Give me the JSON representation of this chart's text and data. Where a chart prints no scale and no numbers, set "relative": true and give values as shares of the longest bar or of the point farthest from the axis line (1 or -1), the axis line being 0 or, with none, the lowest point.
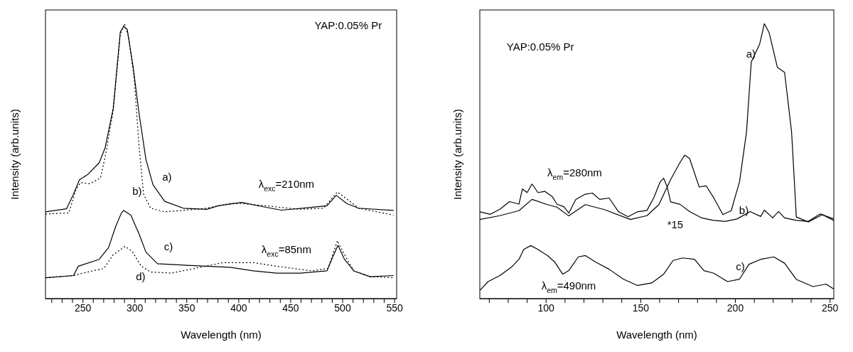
{
  "chart_data": [
    {
      "type": "line",
      "relative": true,
      "xlabel": "Wavelength (nm)",
      "ylabel": "Intensity (arb.units)",
      "xlim": [
        214,
        552
      ],
      "xticks": [
        {
          "value": 220,
          "label": null
        },
        {
          "value": 230,
          "label": null
        },
        {
          "value": 240,
          "label": null
        },
        250,
        {
          "value": 260,
          "label": null
        },
        {
          "value": 270,
          "label": null
        },
        {
          "value": 280,
          "label": null
        },
        {
          "value": 290,
          "label": null
        },
        300,
        {
          "value": 310,
          "label": null
        },
        {
          "value": 320,
          "label": null
        },
        {
          "value": 330,
          "label": null
        },
        {
          "value": 340,
          "label": null
        },
        350,
        {
          "value": 360,
          "label": null
        },
        {
          "value": 370,
          "label": null
        },
        {
          "value": 380,
          "label": null
        },
        {
          "value": 390,
          "label": null
        },
        400,
        {
          "value": 410,
          "label": null
        },
        {
          "value": 420,
          "label": null
        },
        {
          "value": 430,
          "label": null
        },
        {
          "value": 440,
          "label": null
        },
        450,
        {
          "value": 460,
          "label": null
        },
        {
          "value": 470,
          "label": null
        },
        {
          "value": 480,
          "label": null
        },
        {
          "value": 490,
          "label": null
        },
        500,
        {
          "value": 510,
          "label": null
        },
        {
          "value": 520,
          "label": null
        },
        {
          "value": 530,
          "label": null
        },
        {
          "value": 540,
          "label": null
        },
        550
      ],
      "series": [
        {
          "color": "#000000",
          "line_style": "solid",
          "x": [
            214.0,
            234.3,
            241.0,
            246.6,
            254.5,
            265.7,
            271.4,
            279.2,
            286.0,
            289.3,
            292.7,
            298.3,
            304.0,
            310.7,
            317.5,
            328.7,
            346.7,
            369.1,
            380.4,
            402.9,
            425.3,
            441.1,
            461.1,
            484.9,
            493.9,
            504.0,
            515.3,
            549.0
          ],
          "values": [
            0.316,
            0.327,
            0.38,
            0.432,
            0.451,
            0.494,
            0.549,
            0.692,
            0.97,
            0.99,
            0.979,
            0.844,
            0.675,
            0.506,
            0.414,
            0.354,
            0.329,
            0.325,
            0.338,
            0.35,
            0.333,
            0.322,
            0.329,
            0.338,
            0.376,
            0.346,
            0.329,
            0.321
          ]
        },
        {
          "color": "#000000",
          "line_style": "dotted",
          "x": [
            214.0,
            236.5,
            243.3,
            247.8,
            256.7,
            266.9,
            271.4,
            279.2,
            286.0,
            290.0,
            293.8,
            299.4,
            304.0,
            308.4,
            315.2,
            328.7,
            346.7,
            369.1,
            391.6,
            402.9,
            425.3,
            459.1,
            481.5,
            495.0,
            504.0,
            515.3,
            549.0
          ],
          "values": [
            0.308,
            0.312,
            0.397,
            0.422,
            0.418,
            0.439,
            0.515,
            0.684,
            0.962,
            1,
            0.954,
            0.802,
            0.557,
            0.38,
            0.329,
            0.316,
            0.321,
            0.329,
            0.346,
            0.346,
            0.338,
            0.325,
            0.329,
            0.388,
            0.363,
            0.329,
            0.304
          ]
        },
        {
          "color": "#000000",
          "line_style": "solid",
          "x": [
            214.0,
            241.0,
            245.5,
            265.7,
            274.7,
            281.5,
            287.1,
            289.3,
            296.1,
            304.0,
            310.7,
            321.9,
            346.7,
            369.1,
            391.6,
            414.1,
            436.6,
            459.1,
            484.9,
            490.5,
            495.5,
            501.8,
            510.8,
            526.5,
            549.0
          ],
          "values": [
            0.076,
            0.084,
            0.118,
            0.143,
            0.186,
            0.262,
            0.312,
            0.321,
            0.304,
            0.236,
            0.169,
            0.127,
            0.122,
            0.118,
            0.114,
            0.101,
            0.093,
            0.093,
            0.101,
            0.152,
            0.194,
            0.143,
            0.101,
            0.08,
            0.084
          ]
        },
        {
          "color": "#000000",
          "line_style": "dotted",
          "x": [
            214.0,
            241.0,
            250.0,
            270.2,
            279.2,
            290.5,
            297.2,
            306.2,
            315.2,
            335.4,
            357.9,
            384.9,
            414.1,
            436.6,
            470.3,
            486.0,
            495.0,
            501.8,
            510.8,
            526.5,
            549.0
          ],
          "values": [
            0.076,
            0.084,
            0.093,
            0.11,
            0.16,
            0.19,
            0.173,
            0.118,
            0.097,
            0.093,
            0.11,
            0.131,
            0.131,
            0.118,
            0.101,
            0.11,
            0.211,
            0.16,
            0.101,
            0.08,
            0.076
          ]
        }
      ],
      "annotations": [
        "YAP:0.05% Pr",
        "a)",
        "b)",
        "λ$_{exc}$=210nm",
        "c)",
        "d)",
        "λ$_{exc}$=85nm"
      ]
    },
    {
      "type": "line",
      "relative": true,
      "xlabel": "Wavelength (nm)",
      "ylabel": "Intensity (arb.units)",
      "xlim": [
        65,
        252
      ],
      "xticks": [
        {
          "value": 70,
          "label": null
        },
        {
          "value": 80,
          "label": null
        },
        {
          "value": 90,
          "label": null
        },
        100,
        {
          "value": 110,
          "label": null
        },
        {
          "value": 120,
          "label": null
        },
        {
          "value": 130,
          "label": null
        },
        {
          "value": 140,
          "label": null
        },
        150,
        {
          "value": 160,
          "label": null
        },
        {
          "value": 170,
          "label": null
        },
        {
          "value": 180,
          "label": null
        },
        {
          "value": 190,
          "label": null
        },
        200,
        {
          "value": 210,
          "label": null
        },
        {
          "value": 220,
          "label": null
        },
        {
          "value": 230,
          "label": null
        },
        {
          "value": 240,
          "label": null
        },
        250
      ],
      "series": [
        {
          "color": "#000000",
          "line_style": "solid",
          "x": [
            65.0,
            75.6,
            85.7,
            92.6,
            100.7,
            105.7,
            112.0,
            120.7,
            130.8,
            144.5,
            153.3,
            159.6,
            165.8,
            170.8,
            173.3,
            175.8,
            180.9,
            184.6,
            188.4,
            193.4,
            197.8,
            202.2,
            205.9,
            208.4,
            212.8,
            215.3,
            217.8,
            222.2,
            226.0,
            229.7,
            232.2,
            238.5,
            246.0,
            252.0
          ],
          "values": [
            0.288,
            0.302,
            0.32,
            0.361,
            0.342,
            0.333,
            0.301,
            0.342,
            0.324,
            0.288,
            0.302,
            0.342,
            0.433,
            0.496,
            0.522,
            0.51,
            0.406,
            0.41,
            0.369,
            0.306,
            0.32,
            0.425,
            0.607,
            0.861,
            0.925,
            1,
            0.968,
            0.841,
            0.823,
            0.606,
            0.297,
            0.279,
            0.306,
            0.284
          ]
        },
        {
          "color": "#000000",
          "line_style": "solid",
          "x": [
            65.0,
            70.6,
            75.6,
            80.7,
            85.7,
            87.5,
            90.0,
            92.6,
            95.7,
            99.4,
            103.2,
            105.7,
            109.5,
            112.0,
            115.7,
            120.7,
            124.5,
            128.3,
            133.3,
            138.3,
            143.3,
            148.3,
            153.3,
            157.1,
            160.2,
            162.1,
            164.0,
            165.8,
            170.8,
            175.8,
            182.1,
            188.4,
            194.6,
            200.9,
            207.8,
            213.4,
            215.3,
            219.7,
            222.8,
            226.0,
            232.2,
            238.5,
            244.7,
            252.0
          ],
          "values": [
            0.316,
            0.307,
            0.325,
            0.353,
            0.344,
            0.399,
            0.386,
            0.417,
            0.386,
            0.39,
            0.372,
            0.344,
            0.334,
            0.311,
            0.361,
            0.38,
            0.384,
            0.361,
            0.366,
            0.316,
            0.298,
            0.316,
            0.321,
            0.37,
            0.424,
            0.438,
            0.406,
            0.352,
            0.343,
            0.317,
            0.294,
            0.285,
            0.281,
            0.29,
            0.317,
            0.299,
            0.322,
            0.294,
            0.317,
            0.294,
            0.285,
            0.281,
            0.308,
            0.29
          ]
        },
        {
          "color": "#000000",
          "line_style": "solid",
          "x": [
            65.0,
            69.4,
            75.6,
            81.9,
            85.7,
            88.2,
            91.9,
            95.7,
            100.7,
            104.5,
            108.8,
            112.0,
            117.0,
            120.7,
            126.0,
            133.3,
            140.8,
            148.3,
            155.8,
            162.1,
            167.1,
            172.1,
            178.4,
            183.4,
            188.4,
            195.9,
            202.2,
            207.2,
            213.4,
            220.3,
            226.0,
            232.2,
            241.0,
            247.9,
            252.0
          ],
          "values": [
            0.03,
            0.062,
            0.084,
            0.116,
            0.143,
            0.179,
            0.193,
            0.179,
            0.157,
            0.134,
            0.089,
            0.102,
            0.152,
            0.157,
            0.134,
            0.107,
            0.071,
            0.048,
            0.057,
            0.089,
            0.139,
            0.148,
            0.143,
            0.102,
            0.093,
            0.062,
            0.071,
            0.125,
            0.143,
            0.152,
            0.129,
            0.07,
            0.044,
            0.053,
            0.035
          ]
        }
      ],
      "annotations": [
        "YAP:0.05% Pr",
        "a)",
        "λ$_{em}$=280nm",
        "b)",
        "*15",
        "c)",
        "λ$_{em}$=490nm"
      ]
    }
  ]
}
